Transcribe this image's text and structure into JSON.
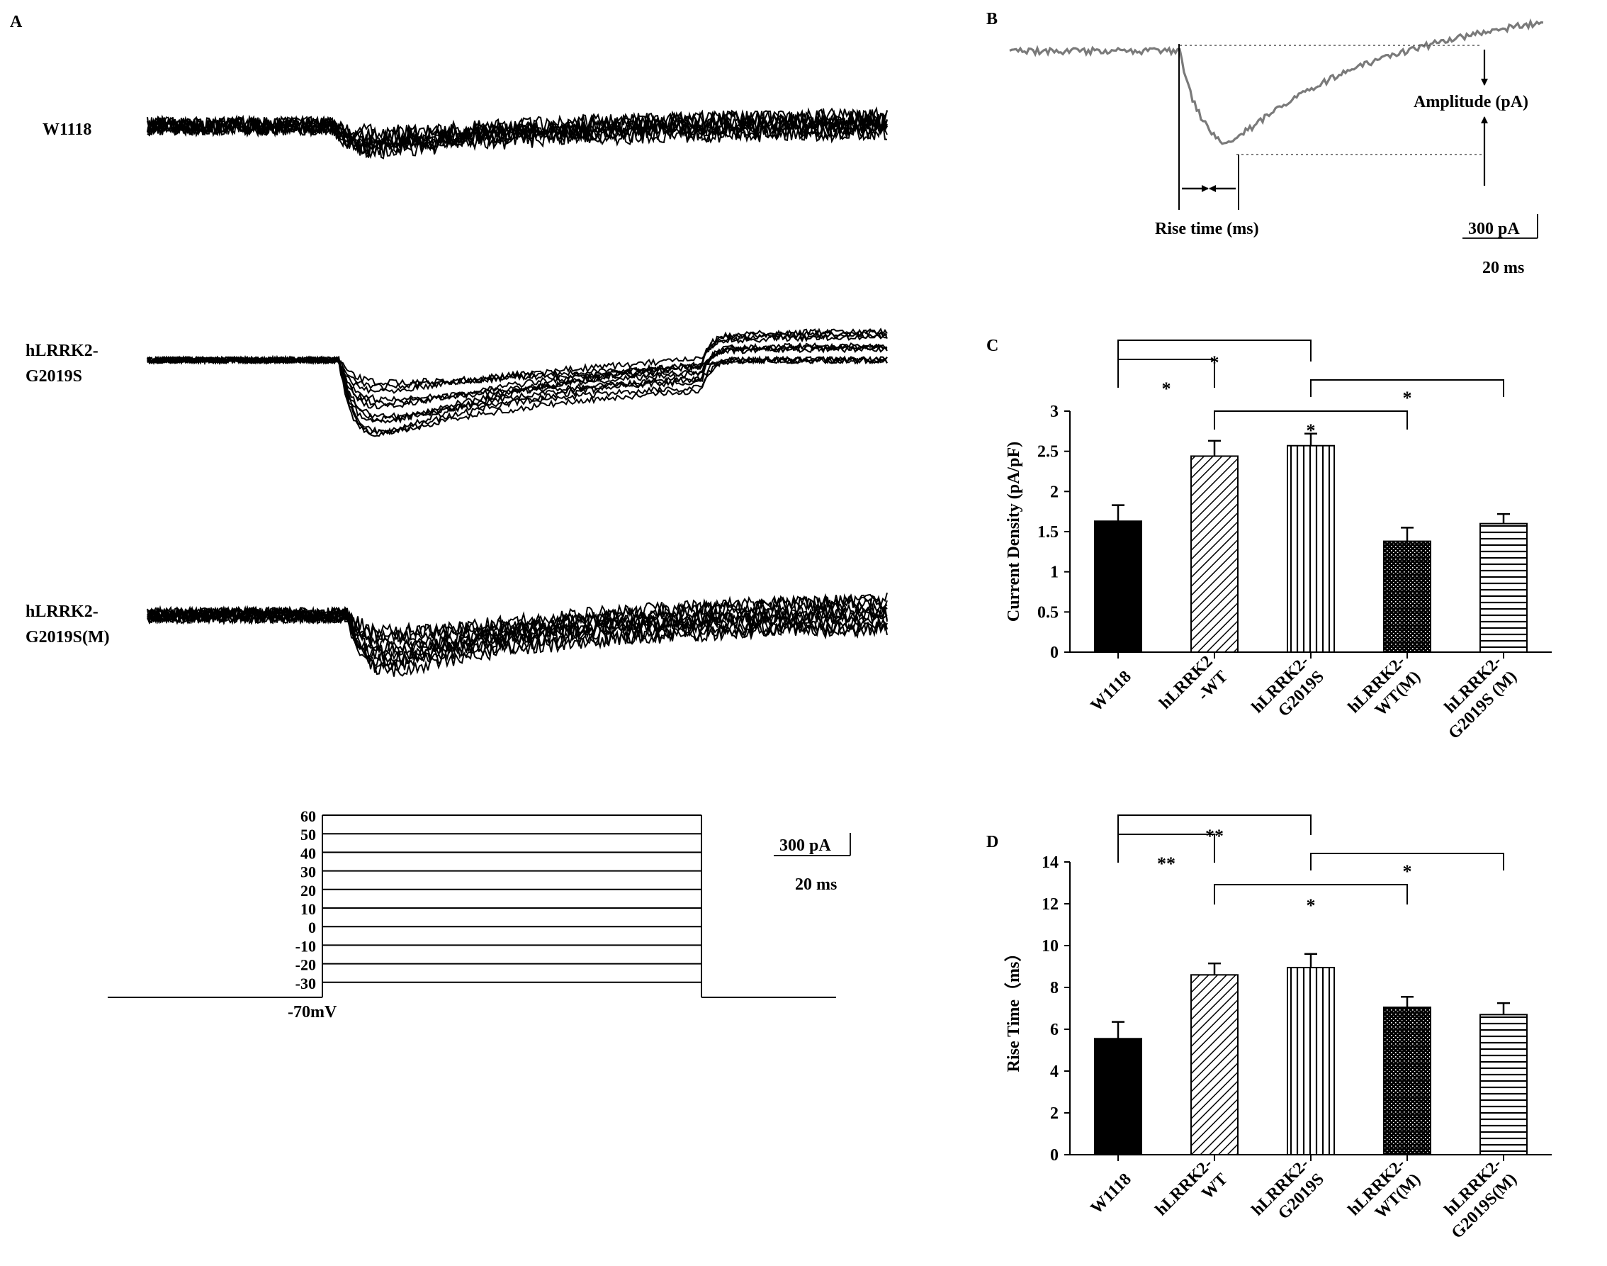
{
  "panel_labels": {
    "a": "A",
    "b": "B",
    "c": "C",
    "d": "D"
  },
  "panel_a": {
    "trace_labels": [
      {
        "lines": [
          "W1118"
        ]
      },
      {
        "lines": [
          "hLRRK2-",
          "G2019S"
        ]
      },
      {
        "lines": [
          "hLRRK2-",
          "G2019S(M)"
        ]
      }
    ],
    "protocol": {
      "steps_mv": [
        "60",
        "50",
        "40",
        "30",
        "20",
        "10",
        "0",
        "-10",
        "-20",
        "-30"
      ],
      "holding_label": "-70mV"
    },
    "scale_bar": {
      "current": "300 pA",
      "time": "20 ms"
    }
  },
  "panel_b": {
    "amplitude_label": "Amplitude (pA)",
    "rise_time_label": "Rise time (ms)",
    "scale_bar": {
      "current": "300 pA",
      "time": "20 ms"
    }
  },
  "chart_data": [
    {
      "panel": "C",
      "type": "bar",
      "ylabel": "Current Density (pA/pF)",
      "ylim": [
        0,
        3
      ],
      "yticks": [
        "0",
        "0.5",
        "1",
        "1.5",
        "2",
        "2.5",
        "3"
      ],
      "categories": [
        [
          "W1118"
        ],
        [
          "hLRRK2",
          "-WT"
        ],
        [
          "hLRRK2-",
          "G2019S"
        ],
        [
          "hLRRK2-",
          "WT(M)"
        ],
        [
          "hLRRK2-",
          "G2019S (M)"
        ]
      ],
      "values": [
        1.63,
        2.44,
        2.57,
        1.38,
        1.6
      ],
      "errors": [
        0.2,
        0.19,
        0.15,
        0.17,
        0.12
      ],
      "patterns": [
        "solid",
        "diagonal",
        "vertical",
        "dots",
        "horizontal"
      ],
      "significance": [
        {
          "from": 0,
          "to": 1,
          "label": "*"
        },
        {
          "from": 0,
          "to": 2,
          "label": "*"
        },
        {
          "from": 2,
          "to": 4,
          "label": "*"
        },
        {
          "from": 1,
          "to": 3,
          "label": "*"
        }
      ]
    },
    {
      "panel": "D",
      "type": "bar",
      "ylabel": "Rise Time（ms）",
      "ylim": [
        0,
        14
      ],
      "yticks": [
        "0",
        "2",
        "4",
        "6",
        "8",
        "10",
        "12",
        "14"
      ],
      "categories": [
        [
          "W1118"
        ],
        [
          "hLRRK2-",
          "WT"
        ],
        [
          "hLRRK2-",
          "G2019S"
        ],
        [
          "hLRRK2-",
          "WT(M)"
        ],
        [
          "hLRRK2-",
          "G2019S(M)"
        ]
      ],
      "values": [
        5.55,
        8.6,
        8.95,
        7.05,
        6.7
      ],
      "errors": [
        0.8,
        0.55,
        0.65,
        0.5,
        0.55
      ],
      "patterns": [
        "solid",
        "diagonal",
        "vertical",
        "dots",
        "horizontal"
      ],
      "significance": [
        {
          "from": 0,
          "to": 1,
          "label": "**"
        },
        {
          "from": 0,
          "to": 2,
          "label": "**"
        },
        {
          "from": 2,
          "to": 4,
          "label": "*"
        },
        {
          "from": 1,
          "to": 3,
          "label": "*"
        }
      ]
    }
  ]
}
